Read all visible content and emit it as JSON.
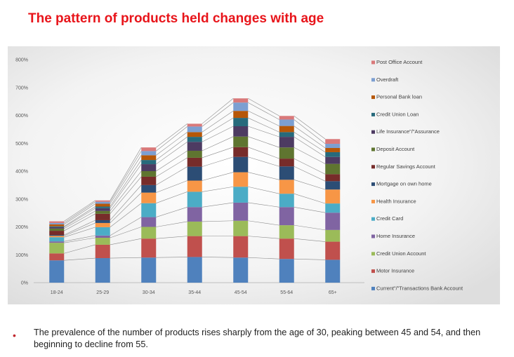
{
  "title": "The pattern of products held changes with age",
  "caption": "The prevalence of the number of products rises sharply from the age of 30, peaking between 45 and 54, and then beginning to decline from 55.",
  "colors": {
    "title": "#e8141a",
    "bullet": "#c0272d"
  },
  "chart_data": {
    "type": "bar",
    "stacked": true,
    "title": "",
    "xlabel": "",
    "ylabel": "",
    "ylim": [
      0,
      800
    ],
    "yticks": [
      "0%",
      "100%",
      "200%",
      "300%",
      "400%",
      "500%",
      "600%",
      "700%",
      "800%"
    ],
    "grid": false,
    "legend_position": "right",
    "series_connector_lines": true,
    "categories": [
      "18-24",
      "25-29",
      "30-34",
      "35-44",
      "45-54",
      "55-64",
      "65+"
    ],
    "series": [
      {
        "name": "Current\"/\"Transactions Bank Account",
        "color": "#4f81bd",
        "values": [
          80,
          88,
          90,
          92,
          90,
          85,
          82
        ]
      },
      {
        "name": "Motor Insurance",
        "color": "#c0504d",
        "values": [
          25,
          48,
          68,
          75,
          77,
          73,
          65
        ]
      },
      {
        "name": "Credit Union Account",
        "color": "#9bbb59",
        "values": [
          38,
          25,
          42,
          52,
          55,
          48,
          42
        ]
      },
      {
        "name": "Home Insurance",
        "color": "#8064a2",
        "values": [
          5,
          8,
          35,
          52,
          65,
          65,
          62
        ]
      },
      {
        "name": "Credit Card",
        "color": "#4bacc6",
        "values": [
          15,
          30,
          50,
          55,
          57,
          48,
          33
        ]
      },
      {
        "name": "Health Insurance",
        "color": "#f79646",
        "values": [
          5,
          15,
          38,
          40,
          52,
          50,
          50
        ]
      },
      {
        "name": "Mortgage on own home",
        "color": "#2c4d75",
        "values": [
          3,
          10,
          27,
          50,
          55,
          48,
          30
        ]
      },
      {
        "name": "Regular Savings Account",
        "color": "#772c2a",
        "values": [
          15,
          23,
          30,
          32,
          35,
          28,
          25
        ]
      },
      {
        "name": "Deposit Account",
        "color": "#5f7530",
        "values": [
          8,
          10,
          20,
          25,
          38,
          40,
          37
        ]
      },
      {
        "name": "Life Insurance\"/\"Assurance",
        "color": "#4d3b62",
        "values": [
          5,
          10,
          25,
          32,
          37,
          38,
          25
        ]
      },
      {
        "name": "Credit Union Loan",
        "color": "#276a7c",
        "values": [
          3,
          6,
          15,
          18,
          30,
          17,
          17
        ]
      },
      {
        "name": "Personal Bank loan",
        "color": "#b65708",
        "values": [
          7,
          10,
          17,
          17,
          25,
          22,
          15
        ]
      },
      {
        "name": "Overdraft",
        "color": "#7c9fd1",
        "values": [
          5,
          7,
          15,
          20,
          30,
          23,
          15
        ]
      },
      {
        "name": "Post Office Account",
        "color": "#d9797a",
        "values": [
          6,
          5,
          13,
          10,
          15,
          13,
          17
        ]
      }
    ]
  }
}
